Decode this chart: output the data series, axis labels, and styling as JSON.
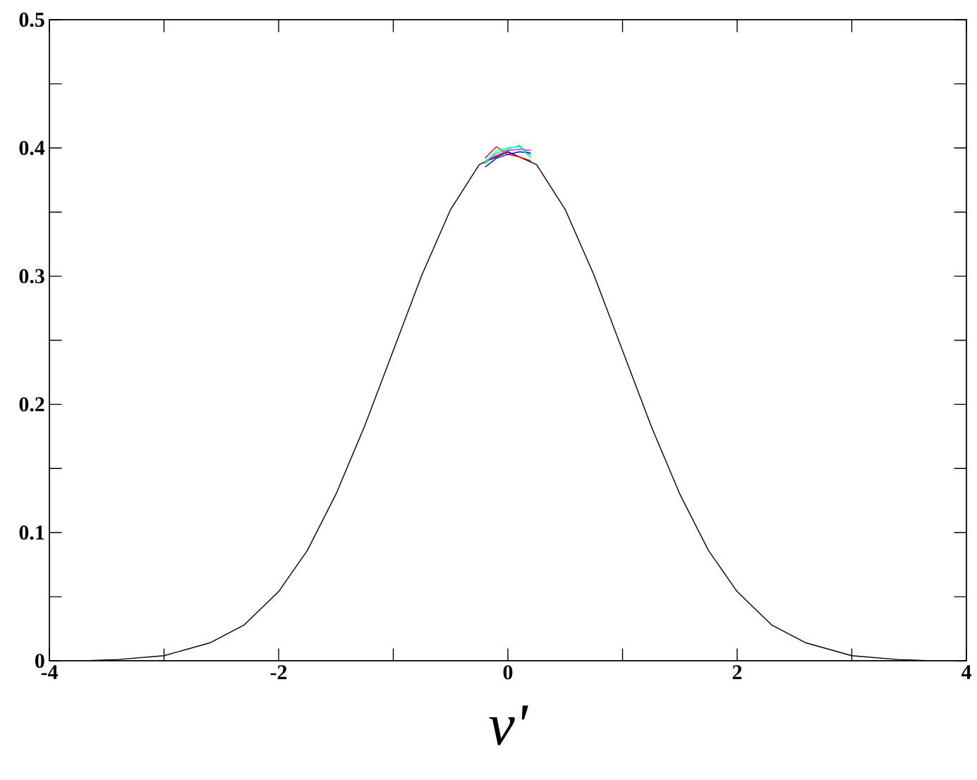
{
  "chart_data": {
    "type": "line",
    "xlabel": "ν'",
    "x": [
      -3.7,
      -3.4,
      -3,
      -2.6,
      -2.3,
      -2,
      -1.75,
      -1.5,
      -1.25,
      -1,
      -0.75,
      -0.5,
      -0.25,
      0,
      0.25,
      0.5,
      0.75,
      1,
      1.25,
      1.5,
      1.75,
      2,
      2.3,
      2.6,
      3,
      3.4,
      3.7
    ],
    "series": [
      {
        "color": "#000000",
        "values": [
          0.0,
          0.001,
          0.004,
          0.014,
          0.028,
          0.054,
          0.086,
          0.13,
          0.183,
          0.242,
          0.301,
          0.352,
          0.387,
          0.397,
          0.387,
          0.352,
          0.301,
          0.242,
          0.183,
          0.13,
          0.086,
          0.054,
          0.028,
          0.014,
          0.004,
          0.001,
          0.0
        ]
      },
      {
        "color": "#ff0000",
        "x": [
          -0.2,
          -0.1,
          0,
          0.1,
          0.2
        ],
        "values": [
          0.392,
          0.401,
          0.395,
          0.393,
          0.39
        ]
      },
      {
        "color": "#00ff00",
        "x": [
          -0.2,
          -0.1,
          0,
          0.1,
          0.2
        ],
        "values": [
          0.388,
          0.396,
          0.399,
          0.402,
          0.394
        ]
      },
      {
        "color": "#0000ff",
        "x": [
          -0.2,
          -0.1,
          0,
          0.1,
          0.2
        ],
        "values": [
          0.385,
          0.392,
          0.395,
          0.397,
          0.396
        ]
      },
      {
        "color": "#ff00ff",
        "x": [
          -0.2,
          -0.1,
          0,
          0.1,
          0.2
        ],
        "values": [
          0.39,
          0.394,
          0.398,
          0.399,
          0.398
        ]
      },
      {
        "color": "#00ffff",
        "x": [
          -0.2,
          -0.1,
          0,
          0.1,
          0.2
        ],
        "values": [
          0.389,
          0.398,
          0.4,
          0.401,
          0.392
        ]
      }
    ],
    "xlim": [
      -4,
      4
    ],
    "xticks": [
      -4,
      -2,
      0,
      2,
      4
    ],
    "ylim": [
      0,
      0.5
    ],
    "yticks": [
      0,
      0.1,
      0.2,
      0.3,
      0.4,
      0.5
    ],
    "grid": false,
    "marker": "none",
    "line_style": "solid"
  }
}
